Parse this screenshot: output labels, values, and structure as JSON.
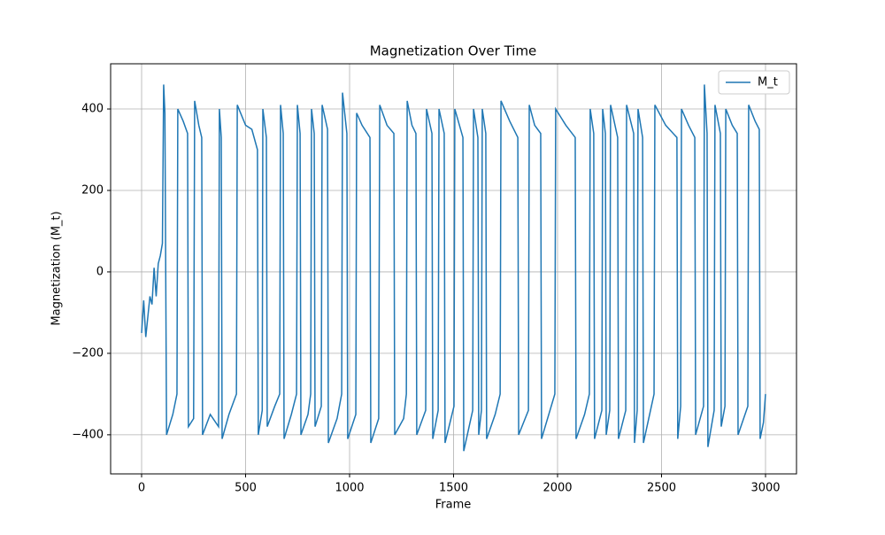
{
  "chart_data": {
    "type": "line",
    "title": "Magnetization Over Time",
    "xlabel": "Frame",
    "ylabel": "Magnetization (M_t)",
    "x": [
      0,
      10,
      20,
      30,
      40,
      50,
      60,
      70,
      80,
      90,
      100,
      106,
      112,
      120,
      150,
      170,
      174,
      200,
      221,
      225,
      250,
      255,
      275,
      289,
      293,
      330,
      370,
      374,
      383,
      387,
      420,
      456,
      460,
      500,
      530,
      557,
      561,
      580,
      583,
      600,
      604,
      640,
      664,
      668,
      681,
      685,
      720,
      745,
      749,
      762,
      766,
      800,
      813,
      817,
      830,
      834,
      864,
      868,
      894,
      898,
      940,
      962,
      966,
      987,
      991,
      1030,
      1034,
      1060,
      1098,
      1102,
      1140,
      1145,
      1180,
      1213,
      1217,
      1260,
      1273,
      1277,
      1300,
      1319,
      1323,
      1366,
      1370,
      1396,
      1400,
      1426,
      1430,
      1455,
      1459,
      1502,
      1506,
      1545,
      1549,
      1592,
      1596,
      1617,
      1621,
      1634,
      1638,
      1655,
      1659,
      1700,
      1724,
      1728,
      1770,
      1809,
      1813,
      1860,
      1864,
      1890,
      1919,
      1923,
      1987,
      1991,
      2040,
      2085,
      2089,
      2130,
      2153,
      2157,
      2174,
      2178,
      2213,
      2217,
      2230,
      2234,
      2251,
      2255,
      2289,
      2293,
      2328,
      2332,
      2366,
      2370,
      2383,
      2387,
      2409,
      2413,
      2464,
      2468,
      2520,
      2574,
      2578,
      2592,
      2596,
      2630,
      2660,
      2664,
      2702,
      2706,
      2719,
      2723,
      2753,
      2757,
      2783,
      2787,
      2805,
      2809,
      2840,
      2864,
      2868,
      2915,
      2919,
      2950,
      2970,
      2974,
      2990,
      3000
    ],
    "series": [
      {
        "name": "M_t",
        "color": "#1f77b4",
        "values": [
          -150,
          -70,
          -160,
          -110,
          -60,
          -80,
          10,
          -60,
          20,
          40,
          70,
          460,
          390,
          -400,
          -350,
          -300,
          400,
          370,
          340,
          -380,
          -360,
          420,
          360,
          330,
          -400,
          -350,
          -380,
          400,
          330,
          -410,
          -350,
          -300,
          410,
          360,
          350,
          300,
          -400,
          -340,
          400,
          330,
          -380,
          -330,
          -300,
          410,
          340,
          -410,
          -350,
          -300,
          410,
          340,
          -400,
          -350,
          -300,
          400,
          340,
          -380,
          -330,
          410,
          350,
          -420,
          -360,
          -300,
          440,
          340,
          -410,
          -350,
          390,
          360,
          330,
          -420,
          -360,
          410,
          360,
          340,
          -400,
          -360,
          -300,
          420,
          360,
          340,
          -400,
          -340,
          400,
          340,
          -410,
          -340,
          400,
          340,
          -420,
          -330,
          400,
          330,
          -440,
          -340,
          400,
          330,
          -400,
          -340,
          400,
          340,
          -410,
          -350,
          -300,
          420,
          370,
          330,
          -400,
          -340,
          410,
          360,
          340,
          -410,
          -300,
          400,
          360,
          330,
          -410,
          -350,
          -300,
          400,
          340,
          -410,
          -340,
          400,
          340,
          -400,
          -340,
          410,
          330,
          -410,
          -340,
          410,
          340,
          -420,
          -340,
          400,
          330,
          -420,
          -300,
          410,
          360,
          330,
          -410,
          -330,
          400,
          360,
          330,
          -400,
          -330,
          460,
          340,
          -430,
          -340,
          410,
          340,
          -380,
          -330,
          400,
          360,
          340,
          -400,
          -330,
          410,
          370,
          350,
          -410,
          -370,
          -300
        ]
      }
    ],
    "xlim": [
      -149,
      3149
    ],
    "ylim": [
      -496,
      511
    ],
    "xticks": [
      0,
      500,
      1000,
      1500,
      2000,
      2500,
      3000
    ],
    "yticks": [
      {
        "value": -400,
        "label": "−400"
      },
      {
        "value": -200,
        "label": "−200"
      },
      0,
      200,
      400
    ],
    "grid": true,
    "legend": "upper right"
  }
}
